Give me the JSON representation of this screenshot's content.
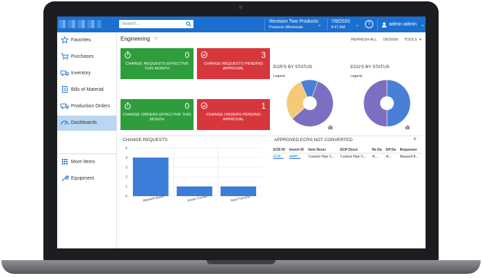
{
  "header": {
    "search_placeholder": "Search...",
    "company_name": "Revision Two Products",
    "company_branch": "Products Wholesale",
    "date": "7/8/2020",
    "time": "8:47 AM",
    "help": "?",
    "user": "admin admin"
  },
  "sidebar": {
    "items": [
      {
        "label": "Favorites",
        "icon": "star-icon"
      },
      {
        "label": "Purchases",
        "icon": "cart-icon"
      },
      {
        "label": "Inventory",
        "icon": "truck-icon"
      },
      {
        "label": "Bills of Material",
        "icon": "document-icon"
      },
      {
        "label": "Production Orders",
        "icon": "truck-icon"
      },
      {
        "label": "Dashboards",
        "icon": "dashboard-icon"
      },
      {
        "label": "More Items",
        "icon": "grid-icon"
      },
      {
        "label": "Equipment",
        "icon": "wrench-icon"
      }
    ]
  },
  "page": {
    "title": "Engineering",
    "toolbar": {
      "refresh": "REFRESH ALL",
      "design": "DESIGN",
      "tools": "TOOLS"
    }
  },
  "tiles": [
    {
      "value": "0",
      "caption": "CHANGE REQUESTS EFFECTIVE THIS MONTH",
      "color": "#2e9d3c"
    },
    {
      "value": "3",
      "caption": "CHANGE REQUESTS PENDING APPROVAL",
      "color": "#d8363d"
    },
    {
      "value": "0",
      "caption": "CHANGE ORDERS EFFECTIVE THIS MONTH",
      "color": "#2e9d3c"
    },
    {
      "value": "1",
      "caption": "CHANGE ORDERS PENDING APPROVAL",
      "color": "#d8363d"
    }
  ],
  "ecr_status": {
    "title": "ECR'S BY STATUS",
    "legend": "Legend"
  },
  "eco_status": {
    "title": "ECO'S BY STATUS",
    "legend": "Legend"
  },
  "change_requests": {
    "title": "CHANGE REQUESTS"
  },
  "approved_ecrs": {
    "title": "APPROVED ECRS NOT CONVERTED",
    "add": "+",
    "columns": [
      "ECR ID",
      "Invent ID",
      "Item Descr",
      "ECR Descr",
      "Re Da",
      "Eff Da",
      "Requestor"
    ],
    "rows": [
      [
        "ECR...",
        "AMPI...",
        "Custom Pipe C...",
        "Custom Pipe C...",
        "4/...",
        "4/...",
        "Maxwell B..."
      ]
    ]
  },
  "chart_data": [
    {
      "type": "bar",
      "title": "CHANGE REQUESTS",
      "categories": [
        "Maxwell Baker",
        "Jessie Correa",
        "Noel Frenchs"
      ],
      "values": [
        4,
        1,
        1
      ],
      "ylim": [
        0,
        5
      ],
      "yticks": [
        "0",
        "1",
        "2",
        "3",
        "4",
        "5"
      ],
      "color": "#3b7dd8",
      "grid": true
    },
    {
      "type": "pie",
      "title": "ECR'S BY STATUS",
      "values": [
        0.58,
        0.3,
        0.12
      ],
      "colors": [
        "#7b6fc2",
        "#f5c97a",
        "#4a7fd6"
      ],
      "donut": true
    },
    {
      "type": "pie",
      "title": "ECO'S BY STATUS",
      "values": [
        0.5,
        0.5
      ],
      "colors": [
        "#4a7fd6",
        "#7b6fc2"
      ],
      "donut": true
    }
  ]
}
